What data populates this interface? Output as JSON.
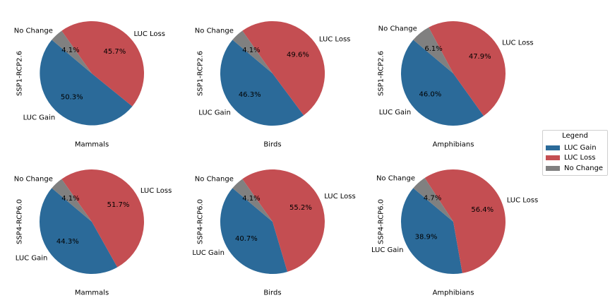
{
  "colors": {
    "LUC Gain": "#2b6a99",
    "LUC Loss": "#c44e52",
    "No Change": "#808080"
  },
  "legend": {
    "title": "Legend",
    "items": [
      {
        "label": "LUC Gain",
        "color": "#2b6a99"
      },
      {
        "label": "LUC Loss",
        "color": "#c44e52"
      },
      {
        "label": "No Change",
        "color": "#808080"
      }
    ],
    "placement": "right"
  },
  "chart_data": [
    {
      "type": "pie",
      "row_label": "SSP1-RCP2.6",
      "xlabel": "Mammals",
      "slices": [
        {
          "label": "LUC Gain",
          "value": 50.3,
          "pct_label": "50.3%"
        },
        {
          "label": "LUC Loss",
          "value": 45.7,
          "pct_label": "45.7%"
        },
        {
          "label": "No Change",
          "value": 4.1,
          "pct_label": "4.1%"
        }
      ]
    },
    {
      "type": "pie",
      "row_label": "SSP1-RCP2.6",
      "xlabel": "Birds",
      "slices": [
        {
          "label": "LUC Gain",
          "value": 46.3,
          "pct_label": "46.3%"
        },
        {
          "label": "LUC Loss",
          "value": 49.6,
          "pct_label": "49.6%"
        },
        {
          "label": "No Change",
          "value": 4.1,
          "pct_label": "4.1%"
        }
      ]
    },
    {
      "type": "pie",
      "row_label": "SSP1-RCP2.6",
      "xlabel": "Amphibians",
      "slices": [
        {
          "label": "LUC Gain",
          "value": 46.0,
          "pct_label": "46.0%"
        },
        {
          "label": "LUC Loss",
          "value": 47.9,
          "pct_label": "47.9%"
        },
        {
          "label": "No Change",
          "value": 6.1,
          "pct_label": "6.1%"
        }
      ]
    },
    {
      "type": "pie",
      "row_label": "SSP4-RCP6.0",
      "xlabel": "Mammals",
      "slices": [
        {
          "label": "LUC Gain",
          "value": 44.3,
          "pct_label": "44.3%"
        },
        {
          "label": "LUC Loss",
          "value": 51.7,
          "pct_label": "51.7%"
        },
        {
          "label": "No Change",
          "value": 4.1,
          "pct_label": "4.1%"
        }
      ]
    },
    {
      "type": "pie",
      "row_label": "SSP4-RCP6.0",
      "xlabel": "Birds",
      "slices": [
        {
          "label": "LUC Gain",
          "value": 40.7,
          "pct_label": "40.7%"
        },
        {
          "label": "LUC Loss",
          "value": 55.2,
          "pct_label": "55.2%"
        },
        {
          "label": "No Change",
          "value": 4.1,
          "pct_label": "4.1%"
        }
      ]
    },
    {
      "type": "pie",
      "row_label": "SSP4-RCP6.0",
      "xlabel": "Amphibians",
      "slices": [
        {
          "label": "LUC Gain",
          "value": 38.9,
          "pct_label": "38.9%"
        },
        {
          "label": "LUC Loss",
          "value": 56.4,
          "pct_label": "56.4%"
        },
        {
          "label": "No Change",
          "value": 4.7,
          "pct_label": "4.7%"
        }
      ]
    }
  ]
}
